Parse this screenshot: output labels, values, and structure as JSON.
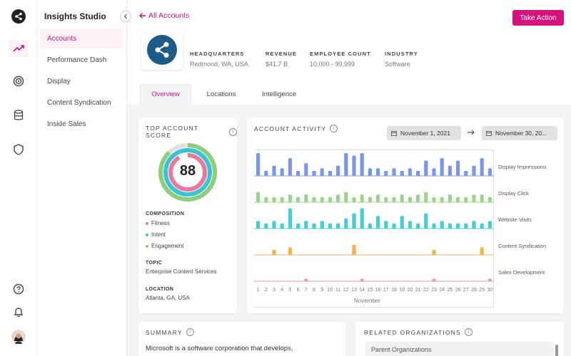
{
  "app": {
    "title": "Insights Studio"
  },
  "nav": {
    "items": [
      {
        "label": "Accounts",
        "active": true
      },
      {
        "label": "Performance Dash",
        "active": false
      },
      {
        "label": "Display",
        "active": false
      },
      {
        "label": "Content Syndication",
        "active": false
      },
      {
        "label": "Inside Sales",
        "active": false
      }
    ]
  },
  "rail": {
    "icons": [
      "share-icon",
      "trend-icon",
      "target-icon",
      "database-icon",
      "shield-icon",
      "help-icon",
      "bell-icon",
      "avatar"
    ]
  },
  "header": {
    "back_label": "All Accounts",
    "action_label": "Take Action",
    "facts": [
      {
        "key": "HEADQUARTERS",
        "value": "Redmond, WA, USA"
      },
      {
        "key": "REVENUE",
        "value": "$41.7 B"
      },
      {
        "key": "EMPLOYEE COUNT",
        "value": "10,000 - 99,999"
      },
      {
        "key": "INDUSTRY",
        "value": "Software"
      }
    ],
    "tabs": [
      {
        "label": "Overview",
        "active": true
      },
      {
        "label": "Locations",
        "active": false
      },
      {
        "label": "Intelligence",
        "active": false
      }
    ]
  },
  "score_card": {
    "title": "TOP ACCOUNT SCORE",
    "score": "88",
    "composition_label": "COMPOSITION",
    "composition": [
      {
        "name": "Fitness",
        "color": "#e8789f"
      },
      {
        "name": "Intent",
        "color": "#3cc3d3"
      },
      {
        "name": "Engagement",
        "color": "#8ccf7a"
      }
    ],
    "topic_label": "TOPIC",
    "topic": "Enterprise Content Services",
    "location_label": "LOCATION",
    "location": "Atlanta, GA, USA"
  },
  "activity_card": {
    "title": "ACCOUNT ACTIVITY",
    "date_from": "November 1, 2021",
    "date_to": "November 30, 20..."
  },
  "chart_data": {
    "type": "bar",
    "xlabel": "November",
    "categories": [
      "1",
      "2",
      "3",
      "4",
      "5",
      "6",
      "7",
      "8",
      "9",
      "10",
      "11",
      "12",
      "13",
      "14",
      "15",
      "16",
      "17",
      "18",
      "19",
      "20",
      "21",
      "22",
      "23",
      "24",
      "25",
      "26",
      "27",
      "28",
      "29",
      "30"
    ],
    "series": [
      {
        "name": "Display Impressions",
        "color": "#7b96e6",
        "values": [
          9,
          2,
          4,
          3,
          7,
          2,
          5,
          2,
          3,
          2,
          4,
          9,
          8,
          9,
          3,
          3,
          2,
          3,
          2,
          3,
          2,
          6,
          3,
          7,
          4,
          6,
          2,
          4,
          7,
          3
        ]
      },
      {
        "name": "Display Click",
        "color": "#9dd28c",
        "values": [
          4,
          2,
          2,
          2,
          3,
          2,
          3,
          2,
          2,
          2,
          3,
          4,
          2,
          3,
          2,
          3,
          2,
          2,
          3,
          2,
          3,
          4,
          2,
          2,
          3,
          2,
          2,
          3,
          3,
          2
        ]
      },
      {
        "name": "Website Visits",
        "color": "#48ccd4",
        "values": [
          3,
          2,
          3,
          2,
          8,
          2,
          3,
          2,
          3,
          2,
          2,
          4,
          6,
          8,
          2,
          5,
          3,
          2,
          5,
          3,
          2,
          6,
          2,
          3,
          2,
          2,
          2,
          3,
          2,
          3
        ]
      },
      {
        "name": "Content Syndication",
        "color": "#f7b24a",
        "values": [
          0,
          0,
          2,
          0,
          3,
          0,
          0,
          0,
          0,
          0,
          0,
          0,
          4,
          0,
          0,
          0,
          0,
          0,
          0,
          0,
          0,
          0,
          2,
          0,
          0,
          0,
          0,
          0,
          3,
          0
        ]
      },
      {
        "name": "Sales Development",
        "color": "#ee94b4",
        "values": [
          0,
          0,
          0,
          0,
          0,
          0,
          1,
          0,
          0,
          0,
          0,
          0,
          0,
          1,
          0,
          0,
          0,
          0,
          0,
          0,
          0,
          0,
          1,
          0,
          0,
          0,
          0,
          0,
          0,
          1
        ]
      }
    ]
  },
  "summary_card": {
    "title": "SUMMARY",
    "text": "Microsoft is a software corporation that develops,"
  },
  "related_card": {
    "title": "RELATED ORGANIZATIONS",
    "sub": "Parent Organizations"
  }
}
